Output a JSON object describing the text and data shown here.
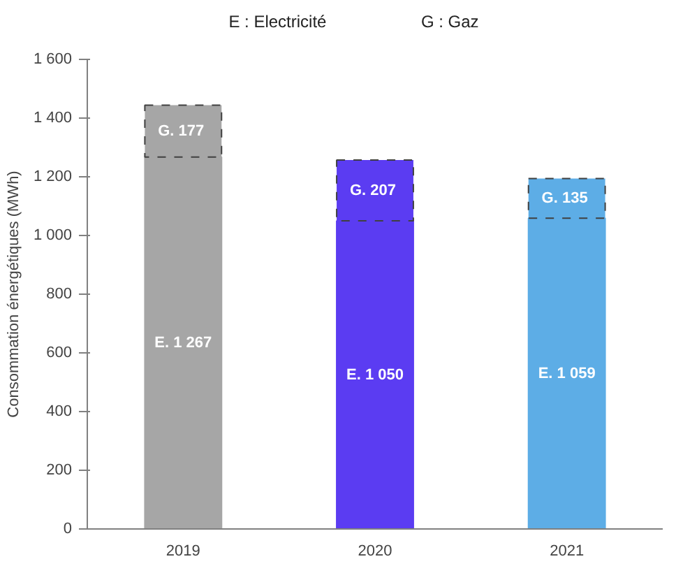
{
  "chart_data": {
    "type": "bar",
    "stacked": true,
    "categories": [
      "2019",
      "2020",
      "2021"
    ],
    "ylabel": "Consommation énergétiques (MWh)",
    "annotations": [
      "E : Electricité",
      "G : Gaz"
    ],
    "ylim": [
      0,
      1600
    ],
    "yticks": [
      0,
      200,
      400,
      600,
      800,
      {
        "value": 1000,
        "label": "1 000"
      },
      {
        "value": 1200,
        "label": "1 200"
      },
      {
        "value": 1400,
        "label": "1 400"
      },
      {
        "value": 1600,
        "label": "1 600"
      }
    ],
    "grid": false,
    "series": [
      {
        "colors": [
          "#a6a6a6",
          "#5b3cf2",
          "#5dade6"
        ],
        "values": [
          1267,
          1050,
          1059
        ],
        "value_labels": [
          "E. 1 267",
          "E. 1 050",
          "E. 1 059"
        ],
        "line_style": "solid"
      },
      {
        "colors": [
          "#a6a6a6",
          "#5b3cf2",
          "#5dade6"
        ],
        "values": [
          177,
          207,
          135
        ],
        "value_labels": [
          "G.  177",
          "G.  207",
          "G.  135"
        ],
        "line_style": "dashed"
      }
    ]
  }
}
